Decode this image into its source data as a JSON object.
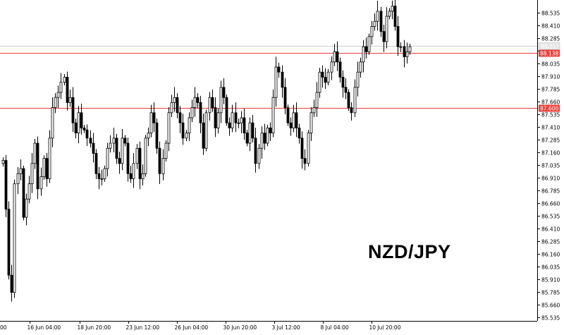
{
  "chart_data": {
    "type": "candlestick",
    "symbol": "NZD/JPY",
    "ylim": [
      85.5,
      88.66
    ],
    "y_ticks": [
      "88.535",
      "88.410",
      "88.285",
      "88.160",
      "88.035",
      "87.910",
      "87.785",
      "87.660",
      "87.535",
      "87.410",
      "87.285",
      "87.160",
      "87.035",
      "86.910",
      "86.785",
      "86.660",
      "86.535",
      "86.410",
      "86.285",
      "86.160",
      "86.035",
      "85.910",
      "85.785",
      "85.660",
      "85.535"
    ],
    "x_ticks": [
      "16 Jun 04:00",
      "18 Jun 20:00",
      "23 Jun 12:00",
      "26 Jun 04:00",
      "30 Jun 20:00",
      "3 Jul 12:00",
      "8 Jul 04:00",
      "10 Jul 20:00"
    ],
    "x_tick_left_edge": "00",
    "horizontal_lines": [
      {
        "price": 88.138,
        "label": "88.138",
        "color": "#e8403a"
      },
      {
        "price": 87.6,
        "label": "87.600",
        "color": "#e8403a"
      }
    ],
    "current_price": {
      "price": 88.21,
      "label": "88.21?"
    },
    "series_close": [
      87.08,
      86.6,
      85.95,
      85.78,
      86.85,
      86.95,
      87.0,
      86.52,
      86.7,
      86.85,
      87.05,
      87.25,
      86.8,
      86.92,
      87.1,
      86.9,
      87.3,
      87.6,
      87.7,
      87.75,
      87.85,
      87.9,
      87.65,
      87.7,
      87.45,
      87.35,
      87.55,
      87.4,
      87.38,
      87.3,
      87.25,
      87.15,
      86.95,
      86.9,
      86.9,
      87.0,
      87.2,
      87.25,
      87.3,
      87.1,
      87.05,
      87.3,
      87.25,
      86.95,
      86.9,
      87.05,
      87.2,
      86.9,
      86.95,
      87.3,
      87.35,
      87.55,
      87.45,
      87.2,
      86.95,
      87.1,
      87.25,
      87.55,
      87.65,
      87.7,
      87.55,
      87.45,
      87.3,
      87.35,
      87.5,
      87.6,
      87.7,
      87.65,
      87.45,
      87.2,
      87.55,
      87.7,
      87.6,
      87.4,
      87.55,
      87.8,
      87.7,
      87.45,
      87.4,
      87.55,
      87.45,
      87.45,
      87.5,
      87.35,
      87.25,
      87.45,
      87.3,
      87.05,
      87.2,
      87.35,
      87.25,
      87.4,
      87.35,
      87.7,
      88.0,
      87.95,
      87.8,
      87.6,
      87.45,
      87.4,
      87.55,
      87.4,
      87.3,
      87.1,
      87.05,
      87.35,
      87.55,
      87.6,
      87.75,
      87.95,
      87.9,
      87.85,
      87.95,
      88.05,
      88.15,
      88.05,
      87.9,
      87.8,
      87.75,
      87.6,
      87.55,
      87.8,
      87.95,
      88.05,
      88.2,
      88.15,
      88.3,
      88.4,
      88.45,
      88.55,
      88.35,
      88.25,
      88.5,
      88.55,
      88.6,
      88.4,
      88.2,
      88.2,
      88.1,
      88.15,
      88.2
    ]
  }
}
